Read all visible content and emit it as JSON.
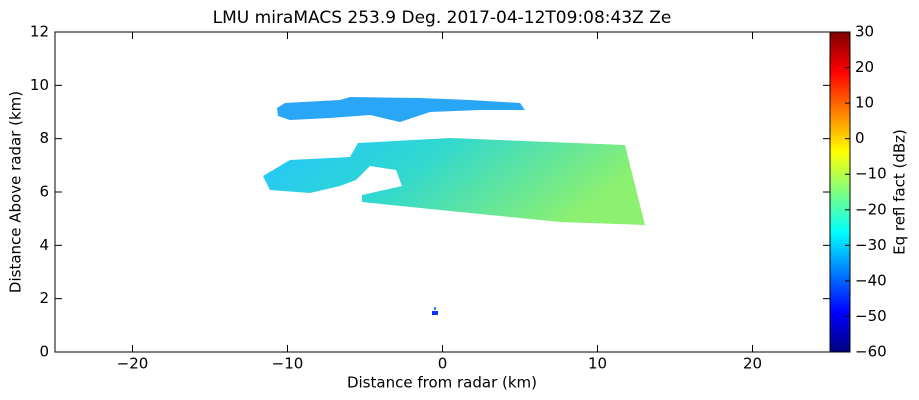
{
  "chart_data": {
    "type": "heatmap",
    "title": "LMU miraMACS 253.9 Deg. 2017-04-12T09:08:43Z  Ze",
    "x_label": "Distance from radar (km)",
    "y_label": "Distance Above radar  (km)",
    "colorbar_label": "Eq refl fact (dBz)",
    "xlim": [
      -25,
      25
    ],
    "xticks": [
      {
        "value": -20,
        "label": "−20"
      },
      {
        "value": -10,
        "label": "−10"
      },
      0,
      10,
      20
    ],
    "ylim": [
      0,
      12
    ],
    "yticks": [
      0,
      2,
      4,
      6,
      8,
      10,
      12
    ],
    "clim": [
      -60,
      30
    ],
    "cticks": [
      {
        "value": -60,
        "label": "−60"
      },
      {
        "value": -50,
        "label": "−50"
      },
      {
        "value": -40,
        "label": "−40"
      },
      {
        "value": -30,
        "label": "−30"
      },
      {
        "value": -20,
        "label": "−20"
      },
      {
        "value": -10,
        "label": "−10"
      },
      0,
      10,
      20,
      30
    ],
    "colormap": [
      "#00007f",
      "#0000ff",
      "#007fff",
      "#00ffff",
      "#7fff7f",
      "#ffff00",
      "#ff7f00",
      "#ff0000",
      "#7f0000"
    ]
  }
}
